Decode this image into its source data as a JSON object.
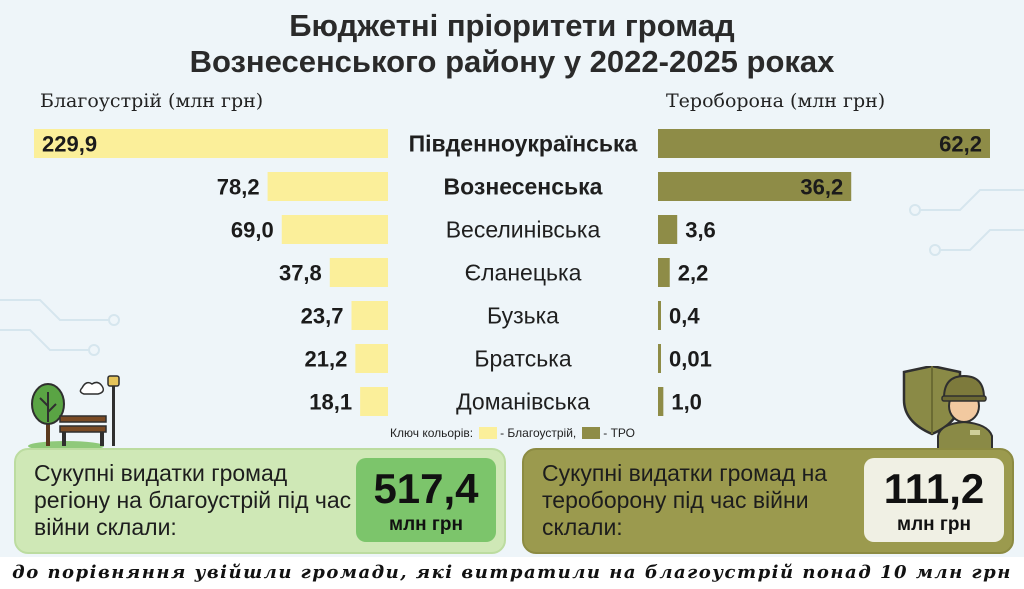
{
  "title_line1": "Бюджетні пріоритети громад",
  "title_line2": "Вознесенського району у 2022-2025 роках",
  "chart_data": {
    "type": "bar",
    "orientation": "horizontal-butterfly",
    "categories": [
      "Південноукраїнська",
      "Вознесенська",
      "Веселинівська",
      "Єланецька",
      "Бузька",
      "Братська",
      "Доманівська"
    ],
    "bold_categories": [
      0,
      1
    ],
    "series": [
      {
        "label": "Благоустрій (млн грн)",
        "color": "#fbef9a",
        "values": [
          229.9,
          78.2,
          69.0,
          37.8,
          23.7,
          21.2,
          18.1
        ],
        "value_labels": [
          "229,9",
          "78,2",
          "69,0",
          "37,8",
          "23,7",
          "21,2",
          "18,1"
        ]
      },
      {
        "label": "Тероборона (млн грн)",
        "color": "#8e8c47",
        "values": [
          62.2,
          36.2,
          3.6,
          2.2,
          0.4,
          0.01,
          1.0
        ],
        "value_labels": [
          "62,2",
          "36,2",
          "3,6",
          "2,2",
          "0,4",
          "0,01",
          "1,0"
        ]
      }
    ]
  },
  "legend": {
    "prefix": "Ключ кольорів:",
    "item1": "- Благоустрій,",
    "item2": "- ТРО",
    "color1": "#fbef9a",
    "color2": "#8e8c47"
  },
  "summary_left": {
    "text": "Сукупні видатки громад регіону на  благоустрій під час війни склали:",
    "value": "517,4",
    "unit": "млн грн"
  },
  "summary_right": {
    "text": "Сукупні видатки громад на тероборону під час війни склали:",
    "value": "111,2",
    "unit": "млн грн"
  },
  "footer": "до порівняння увійшли громади, які витратили на благоустрій понад 10 млн грн",
  "icons": [
    "park-icon",
    "soldier-icon"
  ]
}
